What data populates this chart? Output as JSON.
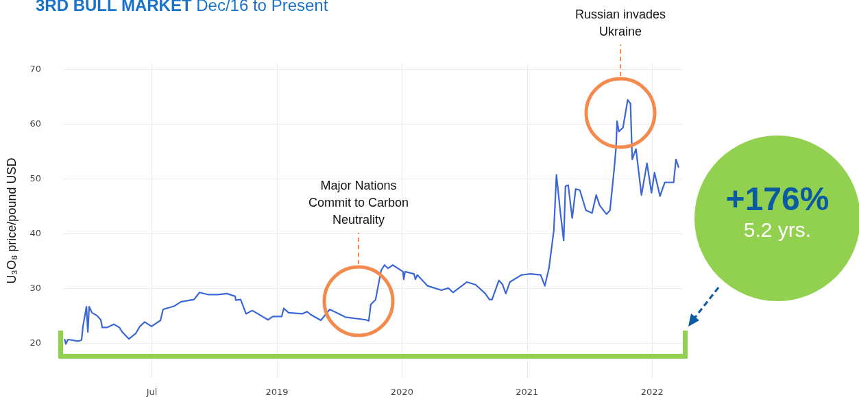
{
  "chart_data": {
    "type": "line",
    "title": "3RD BULL MARKET",
    "subtitle": "Dec/16 to Present",
    "ylabel": "U₃O₈ price/pound USD",
    "x": [
      2017.303,
      2017.312,
      2017.329,
      2017.411,
      2017.438,
      2017.449,
      2017.477,
      2017.488,
      2017.499,
      2017.521,
      2017.559,
      2017.592,
      2017.603,
      2017.641,
      2017.696,
      2017.74,
      2017.762,
      2017.817,
      2017.871,
      2017.904,
      2017.943,
      2017.997,
      2018.069,
      2018.09,
      2018.178,
      2018.233,
      2018.337,
      2018.381,
      2018.452,
      2018.529,
      2018.6,
      2018.666,
      2018.671,
      2018.71,
      2018.753,
      2018.803,
      2018.929,
      2018.967,
      2019.038,
      2019.055,
      2019.093,
      2019.203,
      2019.241,
      2019.274,
      2019.351,
      2019.422,
      2019.548,
      2019.712,
      2019.734,
      2019.751,
      2019.789,
      2019.833,
      2019.86,
      2019.888,
      2019.926,
      2020.008,
      2020.014,
      2020.025,
      2020.096,
      2020.107,
      2020.123,
      2020.205,
      2020.315,
      2020.37,
      2020.408,
      2020.518,
      2020.589,
      2020.666,
      2020.699,
      2020.72,
      2020.775,
      2020.803,
      2020.83,
      2020.863,
      2020.956,
      2021.027,
      2021.109,
      2021.142,
      2021.175,
      2021.214,
      2021.235,
      2021.268,
      2021.293,
      2021.307,
      2021.329,
      2021.361,
      2021.389,
      2021.422,
      2021.471,
      2021.52,
      2021.553,
      2021.581,
      2021.635,
      2021.663,
      2021.696,
      2021.712,
      2021.72,
      2021.734,
      2021.767,
      2021.805,
      2021.827,
      2021.841,
      2021.855,
      2021.871,
      2021.915,
      2021.959,
      2021.995,
      2022.019,
      2022.063,
      2022.101,
      2022.172,
      2022.191,
      2022.211
    ],
    "series": [
      {
        "color": "#3a66d6",
        "values": [
          20.6,
          19.8,
          20.6,
          20.3,
          20.5,
          23,
          26.6,
          22,
          26.6,
          25.5,
          25,
          24.2,
          22.8,
          22.8,
          23.4,
          22.8,
          22,
          20.7,
          21.7,
          23,
          23.8,
          23,
          24.1,
          26.1,
          26.7,
          27.5,
          27.9,
          29.2,
          28.8,
          28.8,
          29,
          28.5,
          27.8,
          27.9,
          25.3,
          25.9,
          24.2,
          24.8,
          24.8,
          26.3,
          25.5,
          25.3,
          25.7,
          25.1,
          24.1,
          26.1,
          24.7,
          24.2,
          24,
          27,
          27.9,
          33.2,
          34.2,
          33.6,
          34.2,
          33,
          31.6,
          33,
          32.6,
          31.6,
          32.4,
          30.4,
          29.6,
          30,
          29.2,
          31.1,
          30.6,
          29,
          27.9,
          27.9,
          31.4,
          30.7,
          29,
          31.1,
          32.4,
          32.6,
          32.4,
          30.4,
          33.6,
          40.5,
          50.7,
          43.5,
          38.7,
          48.6,
          48.8,
          42.8,
          48.1,
          47.9,
          44.2,
          43.7,
          47,
          45.1,
          43.5,
          44.2,
          51.6,
          55.8,
          60.5,
          58.6,
          59.3,
          64.4,
          63.7,
          53.5,
          54.4,
          55.4,
          47,
          52.8,
          47.4,
          51.1,
          46.8,
          49.3,
          49.3,
          53.5,
          52.1
        ]
      }
    ],
    "xlim": [
      2017.29,
      2022.24
    ],
    "xticks": [
      {
        "value": 2018,
        "label": "Jul"
      },
      2019,
      2020,
      2021,
      2022
    ],
    "ylim": [
      13.6,
      71
    ],
    "yticks": [
      20,
      30,
      40,
      50,
      60,
      70
    ],
    "grid": true,
    "marker": "none",
    "line_style": "solid",
    "annotations": [
      "Major Nations\nCommit to Carbon\nNeutrality",
      "Russian invades\nUkraine",
      "+176%",
      "5.2 yrs."
    ]
  }
}
